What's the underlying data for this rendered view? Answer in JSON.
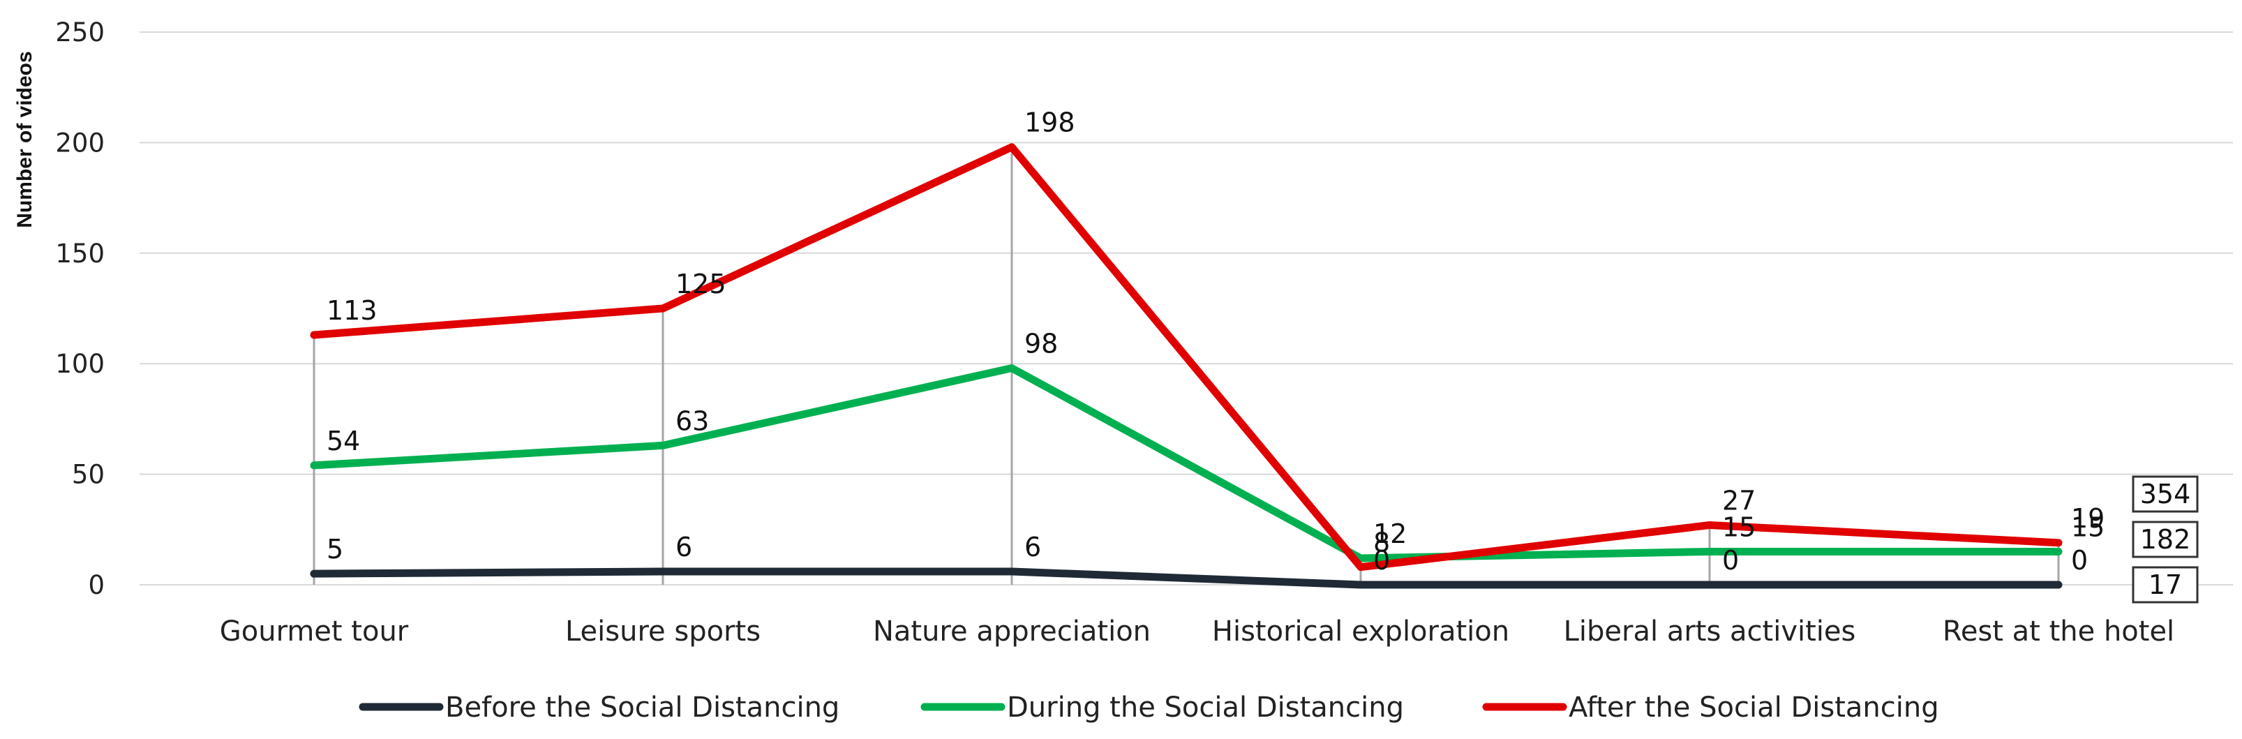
{
  "chart_data": {
    "type": "line",
    "title": "",
    "xlabel": "",
    "ylabel": "Number of videos",
    "ylim": [
      0,
      250
    ],
    "yticks": [
      0,
      50,
      100,
      150,
      200,
      250
    ],
    "grid": true,
    "legend_position": "bottom",
    "categories": [
      "Gourmet tour",
      "Leisure sports",
      "Nature appreciation",
      "Historical exploration",
      "Liberal arts activities",
      "Rest at the hotel"
    ],
    "series": [
      {
        "name": "Before the Social Distancing",
        "color": "#1f2a36",
        "values": [
          5,
          6,
          6,
          0,
          0,
          0
        ],
        "total": "17"
      },
      {
        "name": "During the Social Distancing",
        "color": "#00b050",
        "values": [
          54,
          63,
          98,
          12,
          15,
          15
        ],
        "total": "182"
      },
      {
        "name": "After the Social Distancing",
        "color": "#e00000",
        "values": [
          113,
          125,
          198,
          8,
          27,
          19
        ],
        "total": "354"
      }
    ],
    "drop_lines": true
  }
}
